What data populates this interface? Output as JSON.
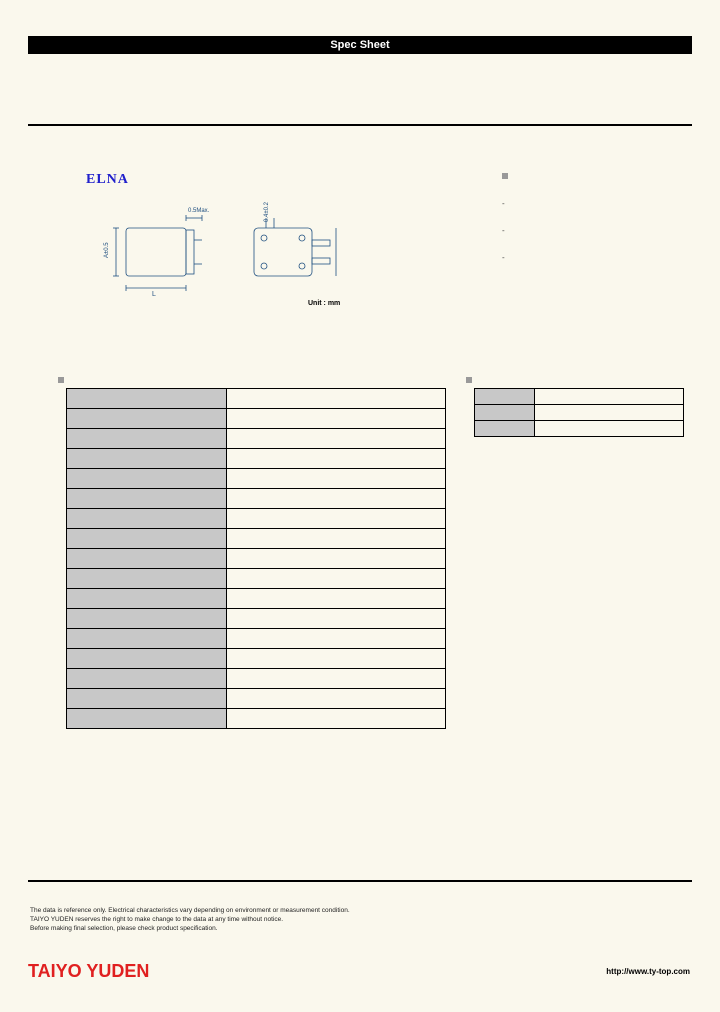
{
  "header": {
    "title": "Spec Sheet"
  },
  "brand": "ELNA",
  "diagram": {
    "unit_label": "Unit : mm",
    "dim_labels": {
      "top": "0.5Max.",
      "right": "0.4±0.2"
    }
  },
  "side_notes": {
    "items": [
      "-",
      "-",
      "-"
    ]
  },
  "spec_table": {
    "rows": [
      {
        "label": "",
        "value": ""
      },
      {
        "label": "",
        "value": ""
      },
      {
        "label": "",
        "value": ""
      },
      {
        "label": "",
        "value": ""
      },
      {
        "label": "",
        "value": ""
      },
      {
        "label": "",
        "value": ""
      },
      {
        "label": "",
        "value": ""
      },
      {
        "label": "",
        "value": ""
      },
      {
        "label": "",
        "value": ""
      },
      {
        "label": "",
        "value": ""
      },
      {
        "label": "",
        "value": ""
      },
      {
        "label": "",
        "value": ""
      },
      {
        "label": "",
        "value": ""
      },
      {
        "label": "",
        "value": ""
      },
      {
        "label": "",
        "value": ""
      },
      {
        "label": "",
        "value": ""
      },
      {
        "label": "",
        "value": ""
      }
    ]
  },
  "dim_table": {
    "rows": [
      {
        "label": "",
        "value": ""
      },
      {
        "label": "",
        "value": ""
      },
      {
        "label": "",
        "value": ""
      }
    ]
  },
  "disclaimer": {
    "line1": "The data is reference only. Electrical characteristics vary depending on environment or measurement condition.",
    "line2": "TAIYO YUDEN reserves the right to make change to the data at any time without notice.",
    "line3": "Before making final selection, please check product specification."
  },
  "footer": {
    "brand": "TAIYO YUDEN",
    "url": "http://www.ty-top.com"
  },
  "colors": {
    "bg": "#faf8ed",
    "title_bg": "#000000",
    "title_fg": "#ffffff",
    "brand_color": "#2020cc",
    "table_label_bg": "#c8c8c8",
    "footer_brand": "#e02020",
    "bullet": "#999999"
  }
}
